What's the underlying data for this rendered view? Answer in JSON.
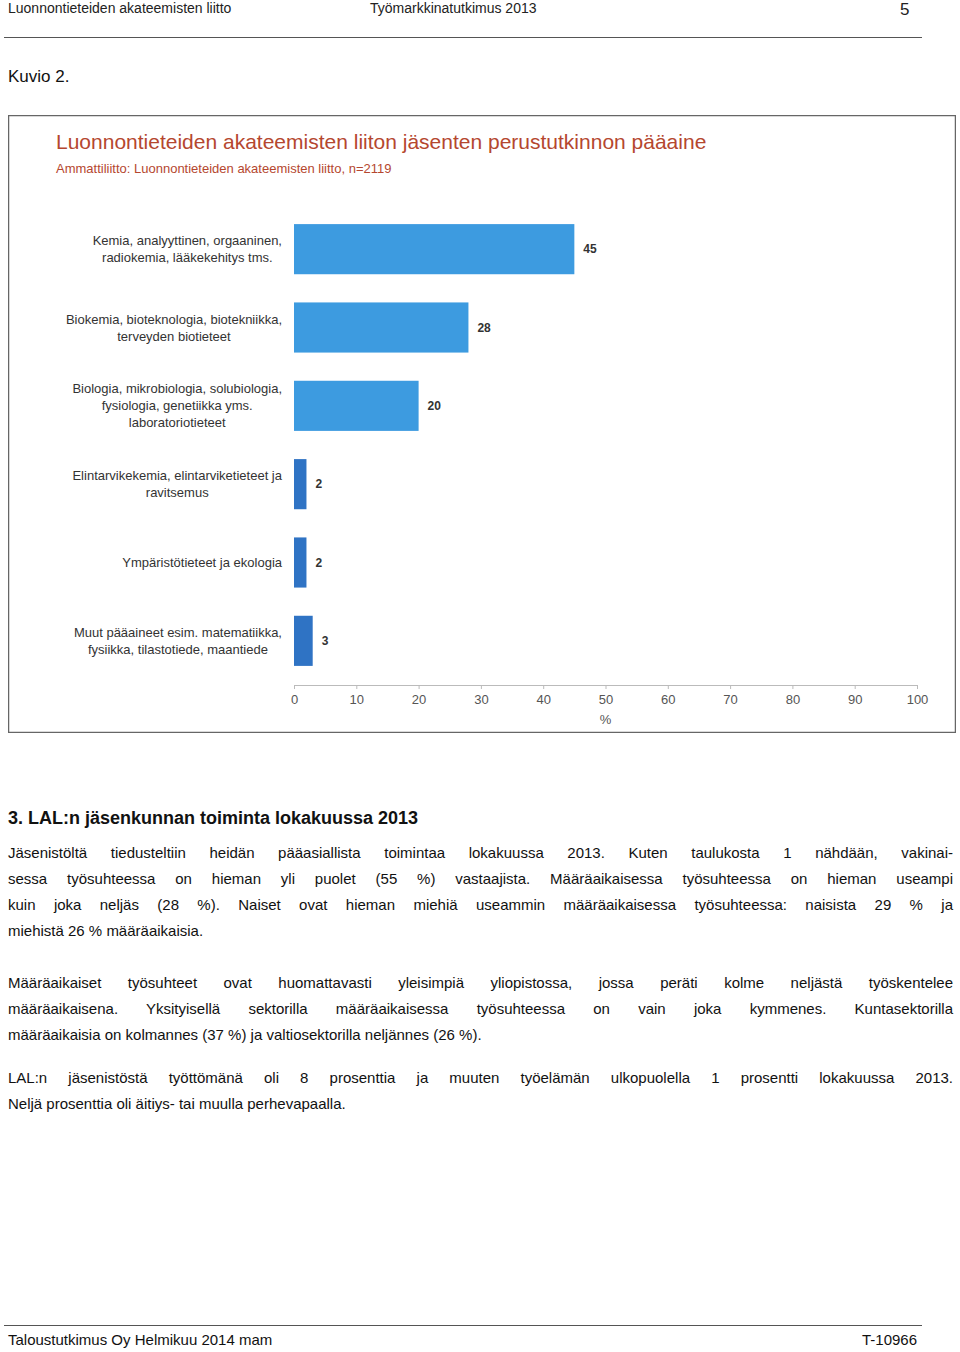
{
  "header": {
    "left": "Luonnontieteiden akateemisten liitto",
    "center": "Työmarkkinatutkimus 2013",
    "page": "5"
  },
  "figure_label": "Kuvio 2.",
  "chart_data": {
    "type": "bar",
    "orientation": "horizontal",
    "title": "Luonnontieteiden akateemisten liiton jäsenten perustutkinnon pääaine",
    "subtitle": "Ammattiliitto: Luonnontieteiden akateemisten liitto, n=2119",
    "categories": [
      "Kemia, analyyttinen, orgaaninen,\nradiokemia, lääkekehitys tms.",
      "Biokemia, bioteknologia, biotekniikka,\nterveyden biotieteet",
      "Biologia, mikrobiologia, solubiologia,\nfysiologia, genetiikka yms.\nlaboratoriotieteet",
      "Elintarvikekemia, elintarviketieteet ja\nravitsemus",
      "Ympäristötieteet ja ekologia",
      "Muut pääaineet esim. matematiikka,\nfysiikka, tilastotiede, maantiede"
    ],
    "values": [
      45,
      28,
      20,
      2,
      2,
      3
    ],
    "colors": [
      "#3d9be0",
      "#3d9be0",
      "#3d9be0",
      "#2f73c4",
      "#2f73c4",
      "#2f73c4"
    ],
    "xlim": [
      0,
      100
    ],
    "xticks": [
      0,
      10,
      20,
      30,
      40,
      50,
      60,
      70,
      80,
      90,
      100
    ],
    "xlabel": "%",
    "data_labels": true
  },
  "section": {
    "heading": "3. LAL:n jäsenkunnan toiminta lokakuussa 2013",
    "paragraphs": [
      [
        "Jäsenistöltä tiedusteltiin heidän pääasiallista toimintaa lokakuussa 2013. Kuten taulukosta 1 nähdään, vakinai-",
        "sessa työsuhteessa on hieman yli puolet (55 %) vastaajista. Määräaikaisessa työsuhteessa on hieman useampi",
        "kuin joka neljäs (28 %). Naiset ovat hieman miehiä useammin määräaikaisessa työsuhteessa: naisista 29 % ja",
        "miehistä 26 % määräaikaisia."
      ],
      [
        "Määräaikaiset työsuhteet ovat huomattavasti yleisimpiä yliopistossa, jossa peräti kolme neljästä työskentelee",
        "määräaikaisena. Yksityisellä sektorilla määräaikaisessa työsuhteessa on vain joka kymmenes. Kuntasektorilla",
        "määräaikaisia on kolmannes (37 %) ja valtiosektorilla neljännes (26 %)."
      ],
      [
        "LAL:n jäsenistöstä työttömänä oli 8 prosenttia ja muuten työelämän ulkopuolella 1 prosentti lokakuussa 2013.",
        "Neljä prosenttia oli äitiys- tai muulla perhevapaalla."
      ]
    ]
  },
  "footer": {
    "left": "Taloustutkimus Oy Helmikuu 2014 mam",
    "right": "T-10966"
  }
}
